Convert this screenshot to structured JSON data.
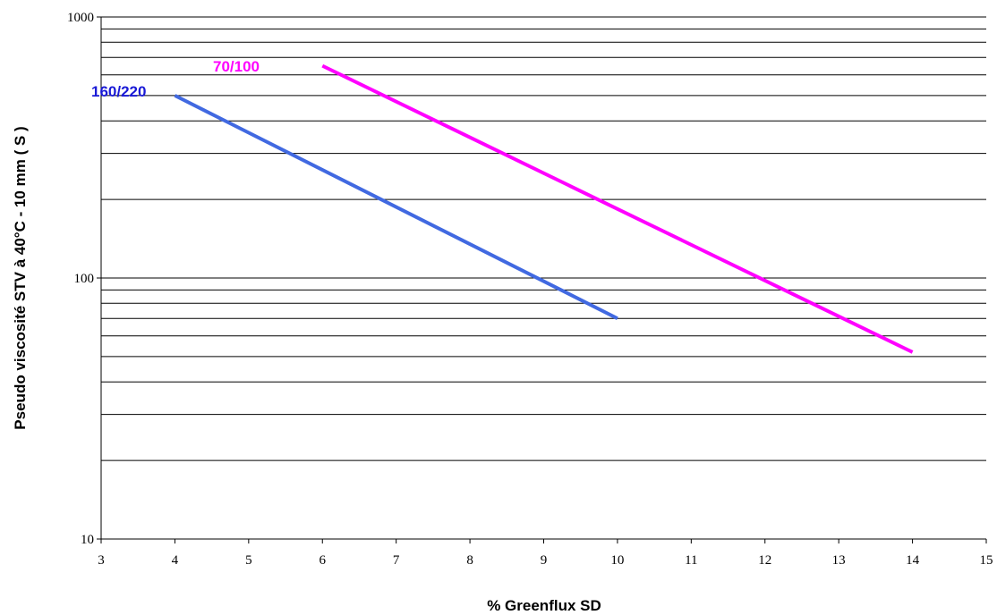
{
  "chart_data": {
    "type": "line",
    "xlabel": "% Greenflux SD",
    "ylabel": "Pseudo viscosité STV à 40°C - 10 mm ( S )",
    "xlim": [
      3,
      15
    ],
    "ylim": [
      10,
      1000
    ],
    "yscale": "log",
    "grid": "horizontal major and minor lines",
    "x_ticks": [
      "3",
      "4",
      "5",
      "6",
      "7",
      "8",
      "9",
      "10",
      "11",
      "12",
      "13",
      "14",
      "15"
    ],
    "y_ticks": [
      "10",
      "100",
      "1000"
    ],
    "series": [
      {
        "name": "160/220",
        "color": "#4169e1",
        "label_color": "#1a1ad6",
        "points": [
          {
            "x": 4,
            "y": 500
          },
          {
            "x": 10,
            "y": 70
          }
        ]
      },
      {
        "name": "70/100",
        "color": "#ff00ff",
        "label_color": "#ff00ff",
        "points": [
          {
            "x": 6,
            "y": 650
          },
          {
            "x": 14,
            "y": 52
          }
        ]
      }
    ]
  }
}
